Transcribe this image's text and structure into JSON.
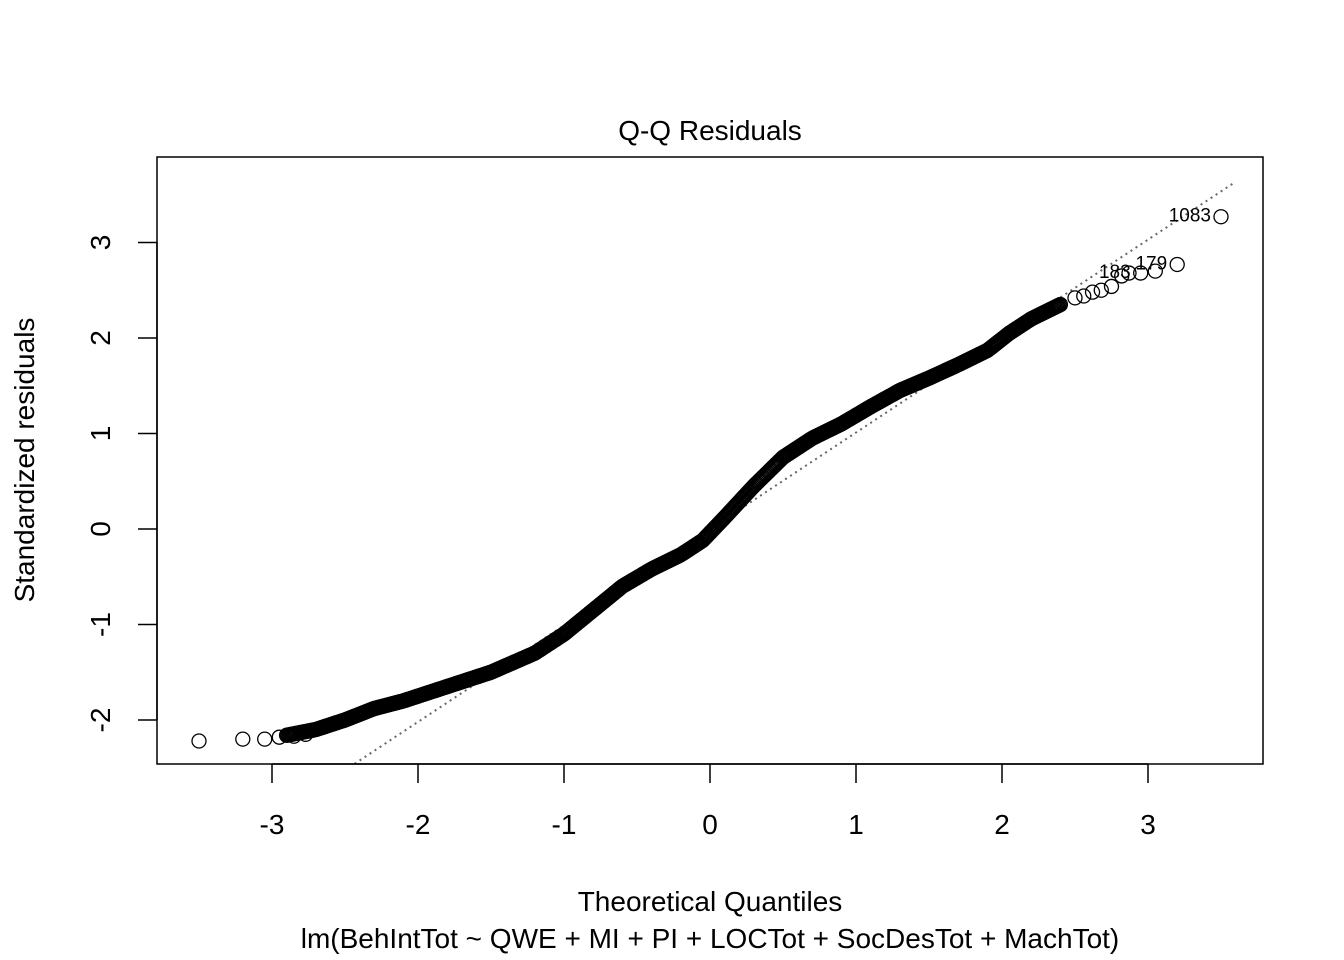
{
  "chart_data": {
    "type": "scatter",
    "title": "Q-Q Residuals",
    "xlabel": "Theoretical Quantiles",
    "subtitle": "lm(BehIntTot ~ QWE + MI + PI + LOCTot + SocDesTot + MachTot)",
    "ylabel": "Standardized residuals",
    "xlim": [
      -3.6,
      3.6
    ],
    "ylim": [
      -2.45,
      3.85
    ],
    "x_ticks": [
      -3,
      -2,
      -1,
      0,
      1,
      2,
      3
    ],
    "x_tick_labels": [
      "-3",
      "-2",
      "-1",
      "0",
      "1",
      "2",
      "3"
    ],
    "y_ticks": [
      -2,
      -1,
      0,
      1,
      2,
      3
    ],
    "y_tick_labels": [
      "-2",
      "-1",
      "0",
      "1",
      "2",
      "3"
    ],
    "grid": false,
    "reference_line": {
      "style": "dotted",
      "color": "#666666",
      "slope": 1.01,
      "intercept": 0.0
    },
    "point_style": {
      "shape": "open-circle",
      "color": "#000000"
    },
    "curve_knots": {
      "x": [
        -2.9,
        -2.7,
        -2.5,
        -2.3,
        -2.1,
        -1.9,
        -1.7,
        -1.5,
        -1.2,
        -1.0,
        -0.8,
        -0.6,
        -0.4,
        -0.2,
        -0.05,
        0.1,
        0.3,
        0.5,
        0.7,
        0.9,
        1.1,
        1.3,
        1.5,
        1.7,
        1.9,
        2.05,
        2.2,
        2.4
      ],
      "y": [
        -2.16,
        -2.1,
        -2.0,
        -1.88,
        -1.8,
        -1.7,
        -1.6,
        -1.5,
        -1.3,
        -1.1,
        -0.85,
        -0.6,
        -0.42,
        -0.27,
        -0.12,
        0.12,
        0.45,
        0.75,
        0.95,
        1.1,
        1.28,
        1.45,
        1.58,
        1.72,
        1.87,
        2.05,
        2.2,
        2.35
      ]
    },
    "tail_points": [
      {
        "x": -3.5,
        "y": -2.22
      },
      {
        "x": -3.2,
        "y": -2.2
      },
      {
        "x": -3.05,
        "y": -2.2
      },
      {
        "x": -2.95,
        "y": -2.18
      },
      {
        "x": -2.85,
        "y": -2.17
      },
      {
        "x": -2.77,
        "y": -2.15
      },
      {
        "x": 2.5,
        "y": 2.42
      },
      {
        "x": 2.56,
        "y": 2.44
      },
      {
        "x": 2.62,
        "y": 2.48
      },
      {
        "x": 2.68,
        "y": 2.5
      },
      {
        "x": 2.75,
        "y": 2.54
      },
      {
        "x": 2.82,
        "y": 2.65
      },
      {
        "x": 2.87,
        "y": 2.68
      },
      {
        "x": 2.95,
        "y": 2.68
      },
      {
        "x": 3.05,
        "y": 2.7
      },
      {
        "x": 3.2,
        "y": 2.77
      },
      {
        "x": 3.5,
        "y": 3.27
      }
    ],
    "labeled_points": [
      {
        "label": "1083",
        "x": 3.5,
        "y": 3.27
      },
      {
        "label": "179",
        "x": 3.2,
        "y": 2.77
      },
      {
        "label": "183",
        "x": 2.95,
        "y": 2.68
      }
    ]
  }
}
